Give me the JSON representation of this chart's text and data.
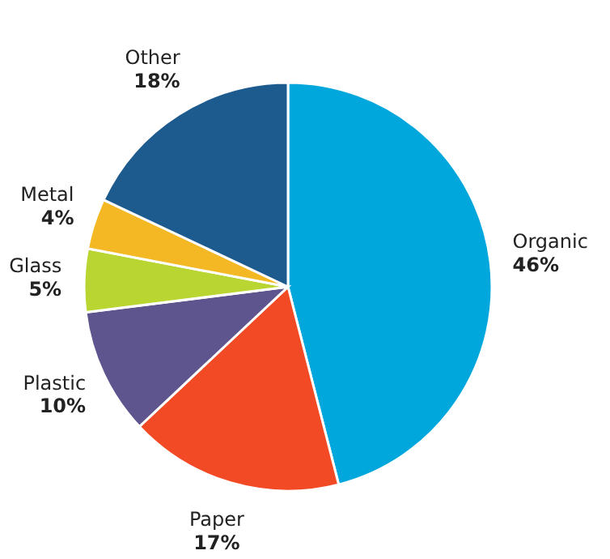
{
  "chart_data": {
    "type": "pie",
    "categories": [
      "Organic",
      "Paper",
      "Plastic",
      "Glass",
      "Metal",
      "Other"
    ],
    "values": [
      46,
      17,
      10,
      5,
      4,
      18
    ],
    "value_labels": [
      "46%",
      "17%",
      "10%",
      "5%",
      "4%",
      "18%"
    ],
    "colors": [
      "#00a7dd",
      "#f14a24",
      "#5e548e",
      "#b9d532",
      "#f3b824",
      "#1d5b8f"
    ]
  }
}
